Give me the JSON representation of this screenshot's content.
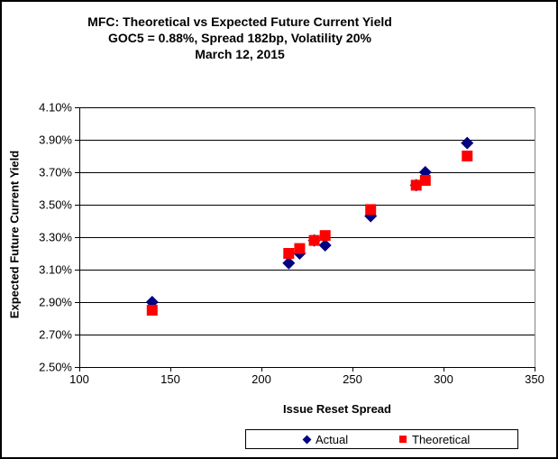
{
  "chart_data": {
    "type": "scatter",
    "title": "MFC: Theoretical vs Expected Future Current Yield",
    "subtitle_lines": [
      "GOC5 = 0.88%, Spread 182bp, Volatility 20%",
      "March 12, 2015"
    ],
    "xlabel": "Issue Reset Spread",
    "ylabel": "Expected Future Current Yield",
    "xlim": [
      100,
      350
    ],
    "ylim": [
      2.5,
      4.1
    ],
    "x_ticks": [
      100,
      150,
      200,
      250,
      300,
      350
    ],
    "y_ticks": [
      2.5,
      2.7,
      2.9,
      3.1,
      3.3,
      3.5,
      3.7,
      3.9,
      4.1
    ],
    "y_tick_labels": [
      "2.50%",
      "2.70%",
      "2.90%",
      "3.10%",
      "3.30%",
      "3.50%",
      "3.70%",
      "3.90%",
      "4.10%"
    ],
    "grid": "horizontal",
    "legend_position": "bottom",
    "x": [
      140,
      215,
      221,
      229,
      235,
      260,
      285,
      290,
      313
    ],
    "series": [
      {
        "name": "Actual",
        "marker": "diamond",
        "color": "#000080",
        "values": [
          2.9,
          3.14,
          3.2,
          3.28,
          3.25,
          3.43,
          3.62,
          3.7,
          3.88
        ]
      },
      {
        "name": "Theoretical",
        "marker": "square",
        "color": "#FF0000",
        "values": [
          2.85,
          3.2,
          3.23,
          3.28,
          3.31,
          3.47,
          3.62,
          3.65,
          3.8
        ]
      }
    ],
    "colors": {
      "gridline": "#000000",
      "axis": "#000000",
      "plot_right_edge": "#808080",
      "text": "#000000"
    }
  }
}
